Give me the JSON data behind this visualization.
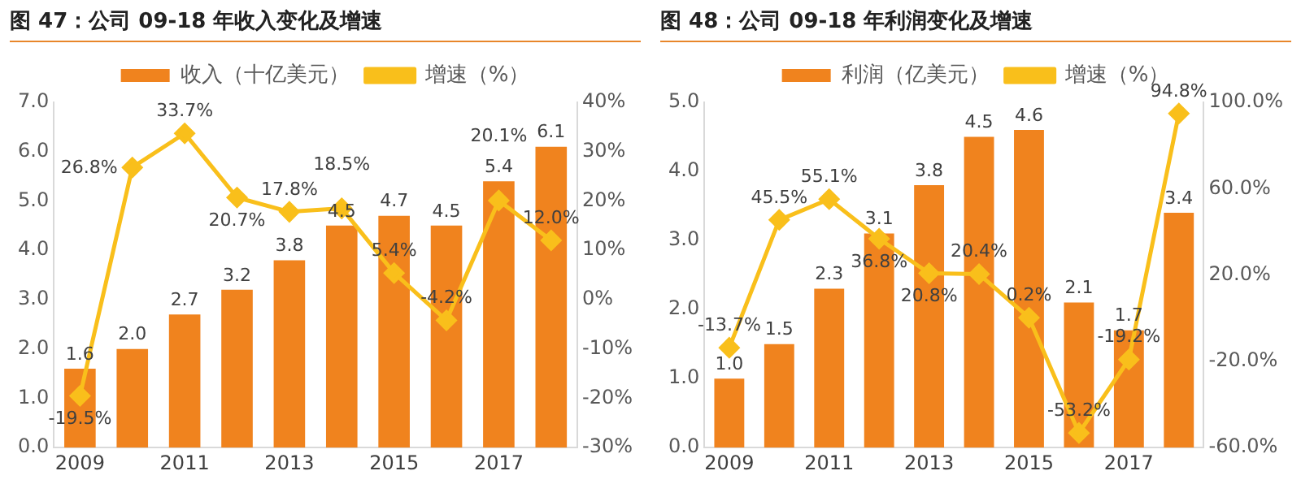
{
  "chart_data": [
    {
      "type": "bar",
      "title": "图 47：公司 09-18 年收入变化及增速",
      "categories": [
        "2009",
        null,
        "2011",
        null,
        "2013",
        null,
        "2015",
        null,
        "2017",
        null
      ],
      "series": [
        {
          "name": "收入（十亿美元）",
          "color": "#f0831e",
          "values": [
            1.6,
            2.0,
            2.7,
            3.2,
            3.8,
            4.5,
            4.7,
            4.5,
            5.4,
            6.1
          ],
          "value_labels": [
            "1.6",
            "2.0",
            "2.7",
            "3.2",
            "3.8",
            "4.5",
            "4.7",
            "4.5",
            "5.4",
            "6.1"
          ]
        },
        {
          "name": "增速（%）",
          "type": "line",
          "axis": "y2",
          "color": "#f9bf1b",
          "values": [
            -19.5,
            26.8,
            33.7,
            20.7,
            17.8,
            18.5,
            5.4,
            -4.2,
            20.1,
            12.0
          ],
          "value_labels": [
            "-19.5%",
            "26.8%",
            "33.7%",
            "20.7%",
            "17.8%",
            "18.5%",
            "5.4%",
            "-4.2%",
            "20.1%",
            "12.0%"
          ]
        }
      ],
      "ylim": [
        0,
        7
      ],
      "yticks": [
        {
          "value": 0,
          "label": "0.0"
        },
        {
          "value": 1,
          "label": "1.0"
        },
        {
          "value": 2,
          "label": "2.0"
        },
        {
          "value": 3,
          "label": "3.0"
        },
        {
          "value": 4,
          "label": "4.0"
        },
        {
          "value": 5,
          "label": "5.0"
        },
        {
          "value": 6,
          "label": "6.0"
        },
        {
          "value": 7,
          "label": "7.0"
        }
      ],
      "y2lim": [
        -30,
        40
      ],
      "y2ticks": [
        {
          "value": -30,
          "label": "-30%"
        },
        {
          "value": -20,
          "label": "-20%"
        },
        {
          "value": -10,
          "label": "-10%"
        },
        {
          "value": 0,
          "label": "0%"
        },
        {
          "value": 10,
          "label": "10%"
        },
        {
          "value": 20,
          "label": "20%"
        },
        {
          "value": 30,
          "label": "30%"
        },
        {
          "value": 40,
          "label": "40%"
        }
      ],
      "legend": "top",
      "marker": "diamond",
      "grid": false
    },
    {
      "type": "bar",
      "title": "图 48：公司 09-18 年利润变化及增速",
      "categories": [
        "2009",
        null,
        "2011",
        null,
        "2013",
        null,
        "2015",
        null,
        "2017",
        null
      ],
      "series": [
        {
          "name": "利润（亿美元）",
          "color": "#f0831e",
          "values": [
            1.0,
            1.5,
            2.3,
            3.1,
            3.8,
            4.5,
            4.6,
            2.1,
            1.7,
            3.4
          ],
          "value_labels": [
            "1.0",
            "1.5",
            "2.3",
            "3.1",
            "3.8",
            "4.5",
            "4.6",
            "2.1",
            "1.7",
            "3.4"
          ]
        },
        {
          "name": "增速（%）",
          "type": "line",
          "axis": "y2",
          "color": "#f9bf1b",
          "values": [
            -13.7,
            45.5,
            55.1,
            36.8,
            20.8,
            20.4,
            0.2,
            -53.2,
            -19.2,
            94.8
          ],
          "value_labels": [
            "-13.7%",
            "45.5%",
            "55.1%",
            "36.8%",
            "20.8%",
            "20.4%",
            "0.2%",
            "-53.2%",
            "-19.2%",
            "94.8%"
          ]
        }
      ],
      "ylim": [
        0,
        5
      ],
      "yticks": [
        {
          "value": 0,
          "label": "0.0"
        },
        {
          "value": 1,
          "label": "1.0"
        },
        {
          "value": 2,
          "label": "2.0"
        },
        {
          "value": 3,
          "label": "3.0"
        },
        {
          "value": 4,
          "label": "4.0"
        },
        {
          "value": 5,
          "label": "5.0"
        }
      ],
      "y2lim": [
        -60,
        100
      ],
      "y2ticks": [
        {
          "value": -60,
          "label": "-60.0%"
        },
        {
          "value": -20,
          "label": "-20.0%"
        },
        {
          "value": 20,
          "label": "20.0%"
        },
        {
          "value": 60,
          "label": "60.0%"
        },
        {
          "value": 100,
          "label": "100.0%"
        }
      ],
      "legend": "top",
      "marker": "diamond",
      "grid": false
    }
  ]
}
